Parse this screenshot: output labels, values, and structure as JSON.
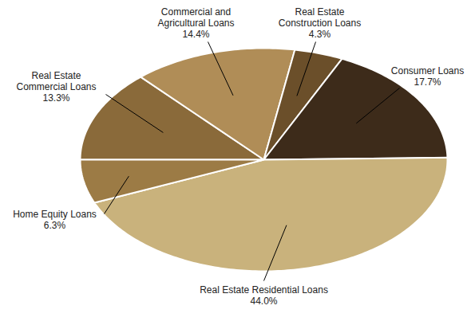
{
  "chart_data": {
    "type": "pie",
    "categories": [
      "Real Estate Commercial Loans",
      "Commercial and Agricultural Loans",
      "Real Estate Construction Loans",
      "Consumer Loans",
      "Real Estate Residential Loans",
      "Home Equity Loans"
    ],
    "values": [
      13.3,
      14.4,
      4.3,
      17.7,
      44.0,
      6.3
    ],
    "value_labels": [
      "13.3%",
      "14.4%",
      "4.3%",
      "17.7%",
      "44.0%",
      "6.3%"
    ],
    "colors": [
      "#8a6a3a",
      "#b08d57",
      "#6b4f2a",
      "#3d2b1a",
      "#c9b27c",
      "#9c7b45"
    ],
    "data_labels": true
  }
}
